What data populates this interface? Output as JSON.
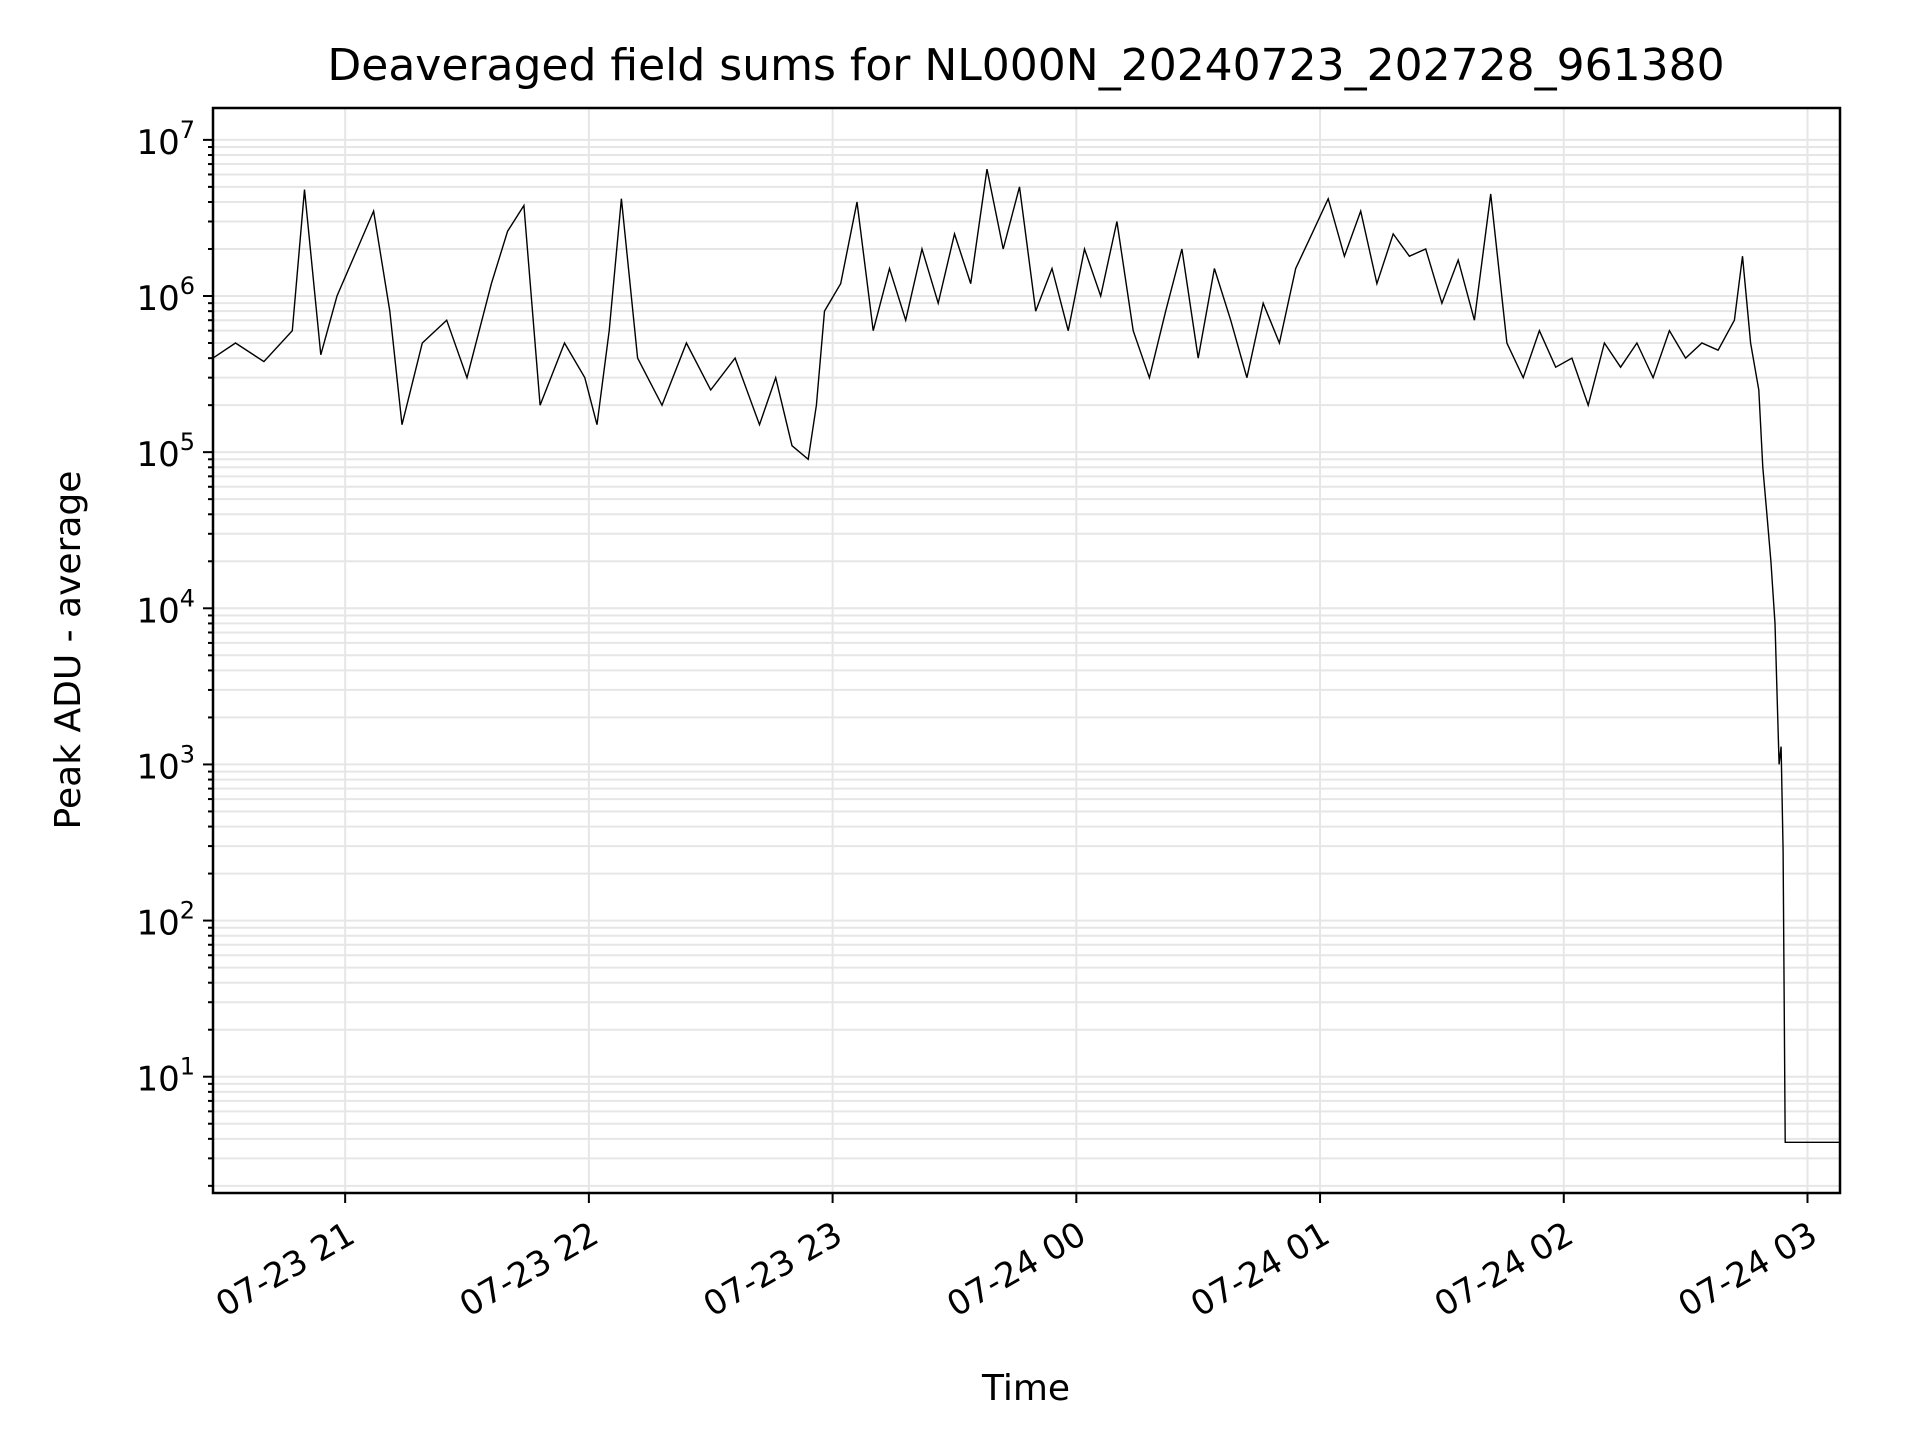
{
  "chart_data": {
    "type": "line",
    "title": "Deaveraged field sums for NL000N_20240723_202728_961380",
    "xlabel": "Time",
    "ylabel": "Peak ADU - average",
    "yscale": "log",
    "grid": true,
    "xlim": [
      "2024-07-23 20:27:28",
      "2024-07-24 03:08:00"
    ],
    "ylim": [
      1.8,
      16000000
    ],
    "x_ticks": [
      {
        "value": "2024-07-23 21:00",
        "label": "07-23 21"
      },
      {
        "value": "2024-07-23 22:00",
        "label": "07-23 22"
      },
      {
        "value": "2024-07-23 23:00",
        "label": "07-23 23"
      },
      {
        "value": "2024-07-24 00:00",
        "label": "07-24 00"
      },
      {
        "value": "2024-07-24 01:00",
        "label": "07-24 01"
      },
      {
        "value": "2024-07-24 02:00",
        "label": "07-24 02"
      },
      {
        "value": "2024-07-24 03:00",
        "label": "07-24 03"
      }
    ],
    "y_ticks": [
      {
        "value": 10,
        "base": "10",
        "exp": "1"
      },
      {
        "value": 100,
        "base": "10",
        "exp": "2"
      },
      {
        "value": 1000,
        "base": "10",
        "exp": "3"
      },
      {
        "value": 10000,
        "base": "10",
        "exp": "4"
      },
      {
        "value": 100000,
        "base": "10",
        "exp": "5"
      },
      {
        "value": 1000000,
        "base": "10",
        "exp": "6"
      },
      {
        "value": 10000000,
        "base": "10",
        "exp": "7"
      }
    ],
    "series": [
      {
        "color": "#000000",
        "points": [
          [
            "2024-07-23 20:27:28",
            400000
          ],
          [
            "2024-07-23 20:33",
            500000
          ],
          [
            "2024-07-23 20:40",
            380000
          ],
          [
            "2024-07-23 20:47",
            600000
          ],
          [
            "2024-07-23 20:50",
            4800000
          ],
          [
            "2024-07-23 20:54",
            420000
          ],
          [
            "2024-07-23 20:58",
            1000000
          ],
          [
            "2024-07-23 21:03",
            2000000
          ],
          [
            "2024-07-23 21:07",
            3500000
          ],
          [
            "2024-07-23 21:11",
            800000
          ],
          [
            "2024-07-23 21:14",
            150000
          ],
          [
            "2024-07-23 21:19",
            500000
          ],
          [
            "2024-07-23 21:25",
            700000
          ],
          [
            "2024-07-23 21:30",
            300000
          ],
          [
            "2024-07-23 21:36",
            1200000
          ],
          [
            "2024-07-23 21:40",
            2600000
          ],
          [
            "2024-07-23 21:44",
            3800000
          ],
          [
            "2024-07-23 21:48",
            200000
          ],
          [
            "2024-07-23 21:54",
            500000
          ],
          [
            "2024-07-23 21:59",
            300000
          ],
          [
            "2024-07-23 22:02",
            150000
          ],
          [
            "2024-07-23 22:05",
            600000
          ],
          [
            "2024-07-23 22:08",
            4200000
          ],
          [
            "2024-07-23 22:12",
            400000
          ],
          [
            "2024-07-23 22:18",
            200000
          ],
          [
            "2024-07-23 22:24",
            500000
          ],
          [
            "2024-07-23 22:30",
            250000
          ],
          [
            "2024-07-23 22:36",
            400000
          ],
          [
            "2024-07-23 22:42",
            150000
          ],
          [
            "2024-07-23 22:46",
            300000
          ],
          [
            "2024-07-23 22:50",
            110000
          ],
          [
            "2024-07-23 22:54",
            90000
          ],
          [
            "2024-07-23 22:56",
            200000
          ],
          [
            "2024-07-23 22:58",
            800000
          ],
          [
            "2024-07-23 23:02",
            1200000
          ],
          [
            "2024-07-23 23:06",
            4000000
          ],
          [
            "2024-07-23 23:10",
            600000
          ],
          [
            "2024-07-23 23:14",
            1500000
          ],
          [
            "2024-07-23 23:18",
            700000
          ],
          [
            "2024-07-23 23:22",
            2000000
          ],
          [
            "2024-07-23 23:26",
            900000
          ],
          [
            "2024-07-23 23:30",
            2500000
          ],
          [
            "2024-07-23 23:34",
            1200000
          ],
          [
            "2024-07-23 23:38",
            6500000
          ],
          [
            "2024-07-23 23:42",
            2000000
          ],
          [
            "2024-07-23 23:46",
            5000000
          ],
          [
            "2024-07-23 23:50",
            800000
          ],
          [
            "2024-07-23 23:54",
            1500000
          ],
          [
            "2024-07-23 23:58",
            600000
          ],
          [
            "2024-07-24 00:02",
            2000000
          ],
          [
            "2024-07-24 00:06",
            1000000
          ],
          [
            "2024-07-24 00:10",
            3000000
          ],
          [
            "2024-07-24 00:14",
            600000
          ],
          [
            "2024-07-24 00:18",
            300000
          ],
          [
            "2024-07-24 00:22",
            800000
          ],
          [
            "2024-07-24 00:26",
            2000000
          ],
          [
            "2024-07-24 00:30",
            400000
          ],
          [
            "2024-07-24 00:34",
            1500000
          ],
          [
            "2024-07-24 00:38",
            700000
          ],
          [
            "2024-07-24 00:42",
            300000
          ],
          [
            "2024-07-24 00:46",
            900000
          ],
          [
            "2024-07-24 00:50",
            500000
          ],
          [
            "2024-07-24 00:54",
            1500000
          ],
          [
            "2024-07-24 00:58",
            2500000
          ],
          [
            "2024-07-24 01:02",
            4200000
          ],
          [
            "2024-07-24 01:06",
            1800000
          ],
          [
            "2024-07-24 01:10",
            3500000
          ],
          [
            "2024-07-24 01:14",
            1200000
          ],
          [
            "2024-07-24 01:18",
            2500000
          ],
          [
            "2024-07-24 01:22",
            1800000
          ],
          [
            "2024-07-24 01:26",
            2000000
          ],
          [
            "2024-07-24 01:30",
            900000
          ],
          [
            "2024-07-24 01:34",
            1700000
          ],
          [
            "2024-07-24 01:38",
            700000
          ],
          [
            "2024-07-24 01:42",
            4500000
          ],
          [
            "2024-07-24 01:46",
            500000
          ],
          [
            "2024-07-24 01:50",
            300000
          ],
          [
            "2024-07-24 01:54",
            600000
          ],
          [
            "2024-07-24 01:58",
            350000
          ],
          [
            "2024-07-24 02:02",
            400000
          ],
          [
            "2024-07-24 02:06",
            200000
          ],
          [
            "2024-07-24 02:10",
            500000
          ],
          [
            "2024-07-24 02:14",
            350000
          ],
          [
            "2024-07-24 02:18",
            500000
          ],
          [
            "2024-07-24 02:22",
            300000
          ],
          [
            "2024-07-24 02:26",
            600000
          ],
          [
            "2024-07-24 02:30",
            400000
          ],
          [
            "2024-07-24 02:34",
            500000
          ],
          [
            "2024-07-24 02:38",
            450000
          ],
          [
            "2024-07-24 02:42",
            700000
          ],
          [
            "2024-07-24 02:44",
            1800000
          ],
          [
            "2024-07-24 02:46",
            500000
          ],
          [
            "2024-07-24 02:48",
            250000
          ],
          [
            "2024-07-24 02:49",
            80000
          ],
          [
            "2024-07-24 02:50",
            40000
          ],
          [
            "2024-07-24 02:51",
            20000
          ],
          [
            "2024-07-24 02:52",
            8000
          ],
          [
            "2024-07-24 02:53",
            1000
          ],
          [
            "2024-07-24 02:53:30",
            1300
          ],
          [
            "2024-07-24 02:54",
            280
          ],
          [
            "2024-07-24 02:54:30",
            3.8
          ],
          [
            "2024-07-24 03:08:00",
            3.8
          ]
        ]
      }
    ]
  }
}
